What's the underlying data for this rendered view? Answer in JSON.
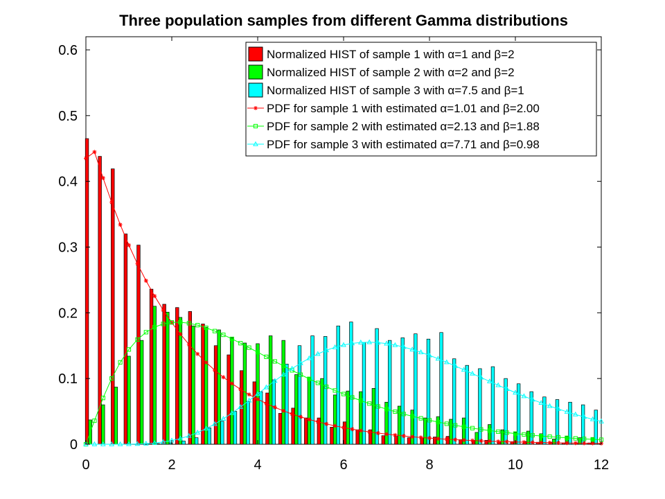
{
  "chart_data": {
    "type": "bar",
    "title": "Three population samples from different Gamma distributions",
    "xlabel": "",
    "ylabel": "",
    "xlim": [
      0,
      12
    ],
    "ylim": [
      0,
      0.62
    ],
    "xticks": [
      "0",
      "2",
      "4",
      "6",
      "8",
      "10",
      "12"
    ],
    "yticks": [
      "0",
      "0.1",
      "0.2",
      "0.3",
      "0.4",
      "0.5",
      "0.6"
    ],
    "grid": false,
    "legend_position": "top-right",
    "bin_centers": [
      0.1,
      0.4,
      0.7,
      1.0,
      1.3,
      1.6,
      1.9,
      2.2,
      2.5,
      2.8,
      3.1,
      3.4,
      3.7,
      4.0,
      4.3,
      4.6,
      4.9,
      5.2,
      5.5,
      5.8,
      6.1,
      6.4,
      6.7,
      7.0,
      7.3,
      7.6,
      7.9,
      8.2,
      8.5,
      8.8,
      9.1,
      9.4,
      9.7,
      10.0,
      10.3,
      10.6,
      10.9,
      11.2,
      11.5,
      11.8
    ],
    "series": [
      {
        "name": "Normalized HIST of sample 1 with α=1 and β=2",
        "kind": "bar",
        "color": "#ff0000",
        "values": [
          0.465,
          0.438,
          0.419,
          0.32,
          0.303,
          0.236,
          0.213,
          0.208,
          0.202,
          0.183,
          0.15,
          0.136,
          0.112,
          0.095,
          0.078,
          0.047,
          0.055,
          0.04,
          0.04,
          0.026,
          0.034,
          0.022,
          0.022,
          0.013,
          0.012,
          0.01,
          0.01,
          0.011,
          0.012,
          0.007,
          0.006,
          0.006,
          0.004,
          0.004,
          0.004,
          0.003,
          0.003,
          0.002,
          0.002,
          0.002
        ]
      },
      {
        "name": "Normalized HIST of sample 2 with α=2 and β=2",
        "kind": "bar",
        "color": "#00ff00",
        "values": [
          0.037,
          0.06,
          0.087,
          0.134,
          0.158,
          0.21,
          0.201,
          0.193,
          0.18,
          0.178,
          0.174,
          0.162,
          0.154,
          0.153,
          0.165,
          0.158,
          0.106,
          0.102,
          0.1,
          0.075,
          0.081,
          0.08,
          0.085,
          0.064,
          0.058,
          0.052,
          0.04,
          0.042,
          0.038,
          0.04,
          0.018,
          0.03,
          0.022,
          0.018,
          0.02,
          0.016,
          0.008,
          0.012,
          0.01,
          0.01
        ]
      },
      {
        "name": "Normalized HIST of sample 3 with α=7.5 and β=1",
        "kind": "bar",
        "color": "#00ffff",
        "values": [
          0.0,
          0.0,
          0.0,
          0.0,
          0.0,
          0.001,
          0.002,
          0.005,
          0.01,
          0.025,
          0.035,
          0.05,
          0.065,
          0.08,
          0.098,
          0.122,
          0.15,
          0.165,
          0.164,
          0.18,
          0.186,
          0.155,
          0.176,
          0.158,
          0.162,
          0.168,
          0.16,
          0.17,
          0.13,
          0.12,
          0.115,
          0.118,
          0.1,
          0.092,
          0.08,
          0.072,
          0.068,
          0.064,
          0.06,
          0.052
        ]
      },
      {
        "name": "PDF for sample 1 with estimated α=1.01 and β=2.00",
        "kind": "line",
        "marker": "star",
        "color": "#ff0000",
        "alpha": 1.01,
        "beta": 2.0
      },
      {
        "name": "PDF for sample 2 with estimated α=2.13 and β=1.88",
        "kind": "line",
        "marker": "square",
        "color": "#00ff00",
        "alpha": 2.13,
        "beta": 1.88
      },
      {
        "name": "PDF for sample 3 with estimated α=7.71 and β=0.98",
        "kind": "line",
        "marker": "triangle",
        "color": "#00ffff",
        "alpha": 7.71,
        "beta": 0.98
      }
    ]
  }
}
